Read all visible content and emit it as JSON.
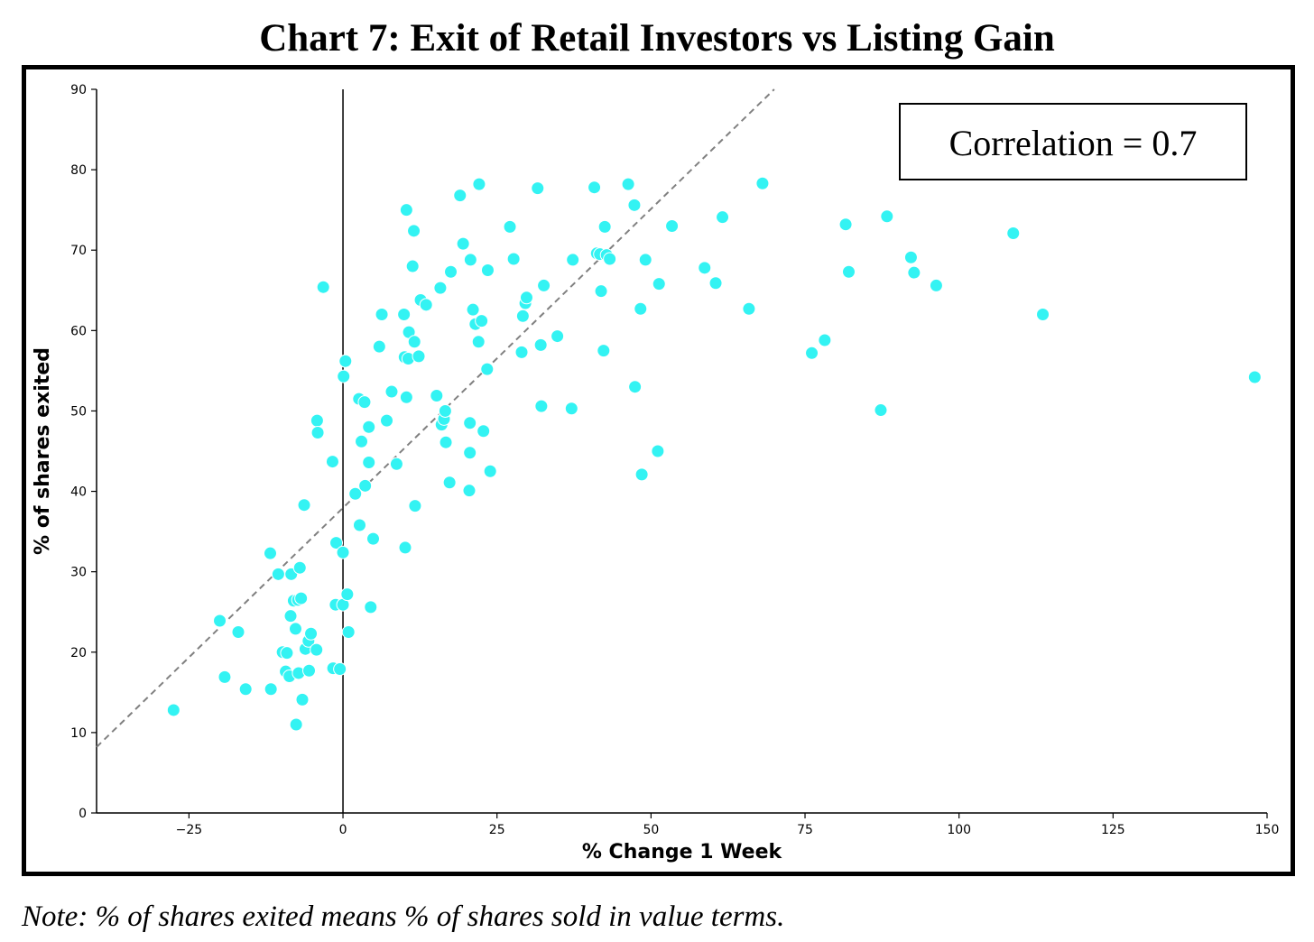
{
  "page": {
    "title": "Chart 7: Exit of Retail Investors vs Listing Gain",
    "note": "Note: % of shares exited means % of shares sold in value terms."
  },
  "chart_data": {
    "type": "scatter",
    "title": "Chart 7: Exit of Retail Investors vs Listing Gain",
    "xlabel": "% Change 1 Week",
    "ylabel": "% of shares exited",
    "xlim": [
      -40,
      150
    ],
    "ylim": [
      0,
      90
    ],
    "xticks": [
      -25,
      0,
      25,
      50,
      75,
      100,
      125,
      150
    ],
    "xtick_labels": [
      "−25",
      "0",
      "25",
      "50",
      "75",
      "100",
      "125",
      "150"
    ],
    "yticks": [
      0,
      10,
      20,
      30,
      40,
      50,
      60,
      70,
      80,
      90
    ],
    "ytick_labels": [
      "0",
      "10",
      "20",
      "30",
      "40",
      "50",
      "60",
      "70",
      "80",
      "90"
    ],
    "grid": false,
    "annotation": "Correlation = 0.7",
    "trendline": {
      "style": "dashed",
      "color": "#808080",
      "x": [
        -40,
        70
      ],
      "y": [
        8.2,
        90
      ]
    },
    "zero_line": {
      "x": 0,
      "color": "#000000"
    },
    "marker_color": "#33f3f3",
    "points": [
      [
        -27.5,
        12.8
      ],
      [
        -20,
        23.9
      ],
      [
        -19.2,
        16.9
      ],
      [
        -17,
        22.5
      ],
      [
        -15.8,
        15.4
      ],
      [
        -11.8,
        32.3
      ],
      [
        -11.7,
        15.4
      ],
      [
        -10.5,
        29.7
      ],
      [
        -9.8,
        20.0
      ],
      [
        -9.3,
        17.6
      ],
      [
        -9.1,
        19.9
      ],
      [
        -8.7,
        17.0
      ],
      [
        -8.5,
        24.5
      ],
      [
        -8.4,
        29.7
      ],
      [
        -8.0,
        26.4
      ],
      [
        -7.7,
        22.9
      ],
      [
        -7.6,
        11.0
      ],
      [
        -7.3,
        26.5
      ],
      [
        -7.2,
        17.4
      ],
      [
        -7.0,
        30.5
      ],
      [
        -6.8,
        26.7
      ],
      [
        -6.6,
        14.1
      ],
      [
        -6.3,
        38.3
      ],
      [
        -6.1,
        20.4
      ],
      [
        -5.6,
        21.4
      ],
      [
        -5.5,
        17.7
      ],
      [
        -5.2,
        22.3
      ],
      [
        -4.3,
        20.3
      ],
      [
        -4.2,
        48.8
      ],
      [
        -4.1,
        47.3
      ],
      [
        -3.2,
        65.4
      ],
      [
        -1.7,
        43.7
      ],
      [
        -1.6,
        18.0
      ],
      [
        -1.2,
        25.9
      ],
      [
        -1.1,
        33.6
      ],
      [
        -0.5,
        17.9
      ],
      [
        0.0,
        25.9
      ],
      [
        0.0,
        32.4
      ],
      [
        0.1,
        54.3
      ],
      [
        0.4,
        56.2
      ],
      [
        0.7,
        27.2
      ],
      [
        0.9,
        22.5
      ],
      [
        2.0,
        39.7
      ],
      [
        2.6,
        51.5
      ],
      [
        2.7,
        35.8
      ],
      [
        3.0,
        46.2
      ],
      [
        3.5,
        51.1
      ],
      [
        3.6,
        40.7
      ],
      [
        4.2,
        43.6
      ],
      [
        4.2,
        48.0
      ],
      [
        4.5,
        25.6
      ],
      [
        4.9,
        34.1
      ],
      [
        5.9,
        58.0
      ],
      [
        6.3,
        62.0
      ],
      [
        7.1,
        48.8
      ],
      [
        7.9,
        52.4
      ],
      [
        8.7,
        43.4
      ],
      [
        9.9,
        62.0
      ],
      [
        10.0,
        56.7
      ],
      [
        10.1,
        33.0
      ],
      [
        10.3,
        51.7
      ],
      [
        10.3,
        75.0
      ],
      [
        10.6,
        56.5
      ],
      [
        10.7,
        59.8
      ],
      [
        11.3,
        68.0
      ],
      [
        11.5,
        72.4
      ],
      [
        11.6,
        58.6
      ],
      [
        11.7,
        38.2
      ],
      [
        12.3,
        56.8
      ],
      [
        12.6,
        63.8
      ],
      [
        13.5,
        63.2
      ],
      [
        15.2,
        51.9
      ],
      [
        15.8,
        65.3
      ],
      [
        16.0,
        48.3
      ],
      [
        16.4,
        49.0
      ],
      [
        16.6,
        50.0
      ],
      [
        16.7,
        46.1
      ],
      [
        17.3,
        41.1
      ],
      [
        17.5,
        67.3
      ],
      [
        19.0,
        76.8
      ],
      [
        19.5,
        70.8
      ],
      [
        20.5,
        40.1
      ],
      [
        20.6,
        44.8
      ],
      [
        20.6,
        48.5
      ],
      [
        20.7,
        68.8
      ],
      [
        21.1,
        62.6
      ],
      [
        21.5,
        60.8
      ],
      [
        22.0,
        58.6
      ],
      [
        22.1,
        78.2
      ],
      [
        22.5,
        61.2
      ],
      [
        22.8,
        47.5
      ],
      [
        23.4,
        55.2
      ],
      [
        23.5,
        67.5
      ],
      [
        23.9,
        42.5
      ],
      [
        27.1,
        72.9
      ],
      [
        27.7,
        68.9
      ],
      [
        29.0,
        57.3
      ],
      [
        29.2,
        61.8
      ],
      [
        29.6,
        63.4
      ],
      [
        29.8,
        64.1
      ],
      [
        31.6,
        77.7
      ],
      [
        32.1,
        58.2
      ],
      [
        32.2,
        50.6
      ],
      [
        32.6,
        65.6
      ],
      [
        34.8,
        59.3
      ],
      [
        37.1,
        50.3
      ],
      [
        37.3,
        68.8
      ],
      [
        40.8,
        77.8
      ],
      [
        41.2,
        69.6
      ],
      [
        41.7,
        69.5
      ],
      [
        41.9,
        64.9
      ],
      [
        42.3,
        57.5
      ],
      [
        42.5,
        72.9
      ],
      [
        42.8,
        69.4
      ],
      [
        43.3,
        68.9
      ],
      [
        46.3,
        78.2
      ],
      [
        47.3,
        75.6
      ],
      [
        47.4,
        53.0
      ],
      [
        48.3,
        62.7
      ],
      [
        48.5,
        42.1
      ],
      [
        49.1,
        68.8
      ],
      [
        51.1,
        45.0
      ],
      [
        51.3,
        65.8
      ],
      [
        53.4,
        73.0
      ],
      [
        58.7,
        67.8
      ],
      [
        60.5,
        65.9
      ],
      [
        61.6,
        74.1
      ],
      [
        65.9,
        62.7
      ],
      [
        68.1,
        78.3
      ],
      [
        76.1,
        57.2
      ],
      [
        78.2,
        58.8
      ],
      [
        81.6,
        73.2
      ],
      [
        82.1,
        67.3
      ],
      [
        87.3,
        50.1
      ],
      [
        88.3,
        74.2
      ],
      [
        92.2,
        69.1
      ],
      [
        92.7,
        67.2
      ],
      [
        96.3,
        65.6
      ],
      [
        108.8,
        72.1
      ],
      [
        113.6,
        62.0
      ],
      [
        148.0,
        54.2
      ]
    ]
  }
}
